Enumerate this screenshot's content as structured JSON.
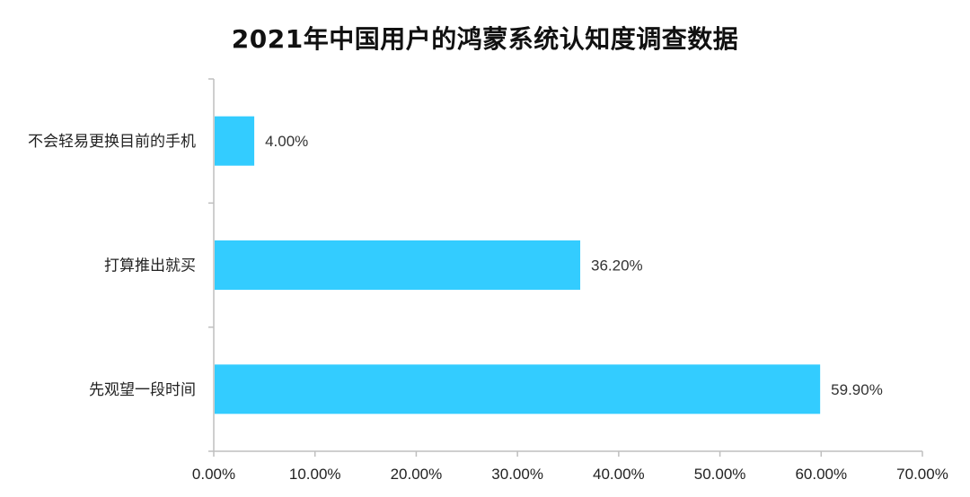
{
  "chart_data": {
    "type": "bar",
    "orientation": "horizontal",
    "title": "2021年中国用户的鸿蒙系统认知度调查数据",
    "categories": [
      "不会轻易更换目前的手机",
      "打算推出就买",
      "先观望一段时间"
    ],
    "values": [
      4.0,
      36.2,
      59.9
    ],
    "value_labels": [
      "4.00%",
      "36.20%",
      "59.90%"
    ],
    "xlim": [
      0,
      70
    ],
    "xticks": [
      0,
      10,
      20,
      30,
      40,
      50,
      60,
      70
    ],
    "xtick_labels": [
      "0.00%",
      "10.00%",
      "20.00%",
      "30.00%",
      "40.00%",
      "50.00%",
      "60.00%",
      "70.00%"
    ],
    "xlabel": "",
    "ylabel": "",
    "grid": false,
    "legend": "none",
    "colors": {
      "bar": "#33CCFF",
      "axis": "#BFBFBF"
    }
  }
}
